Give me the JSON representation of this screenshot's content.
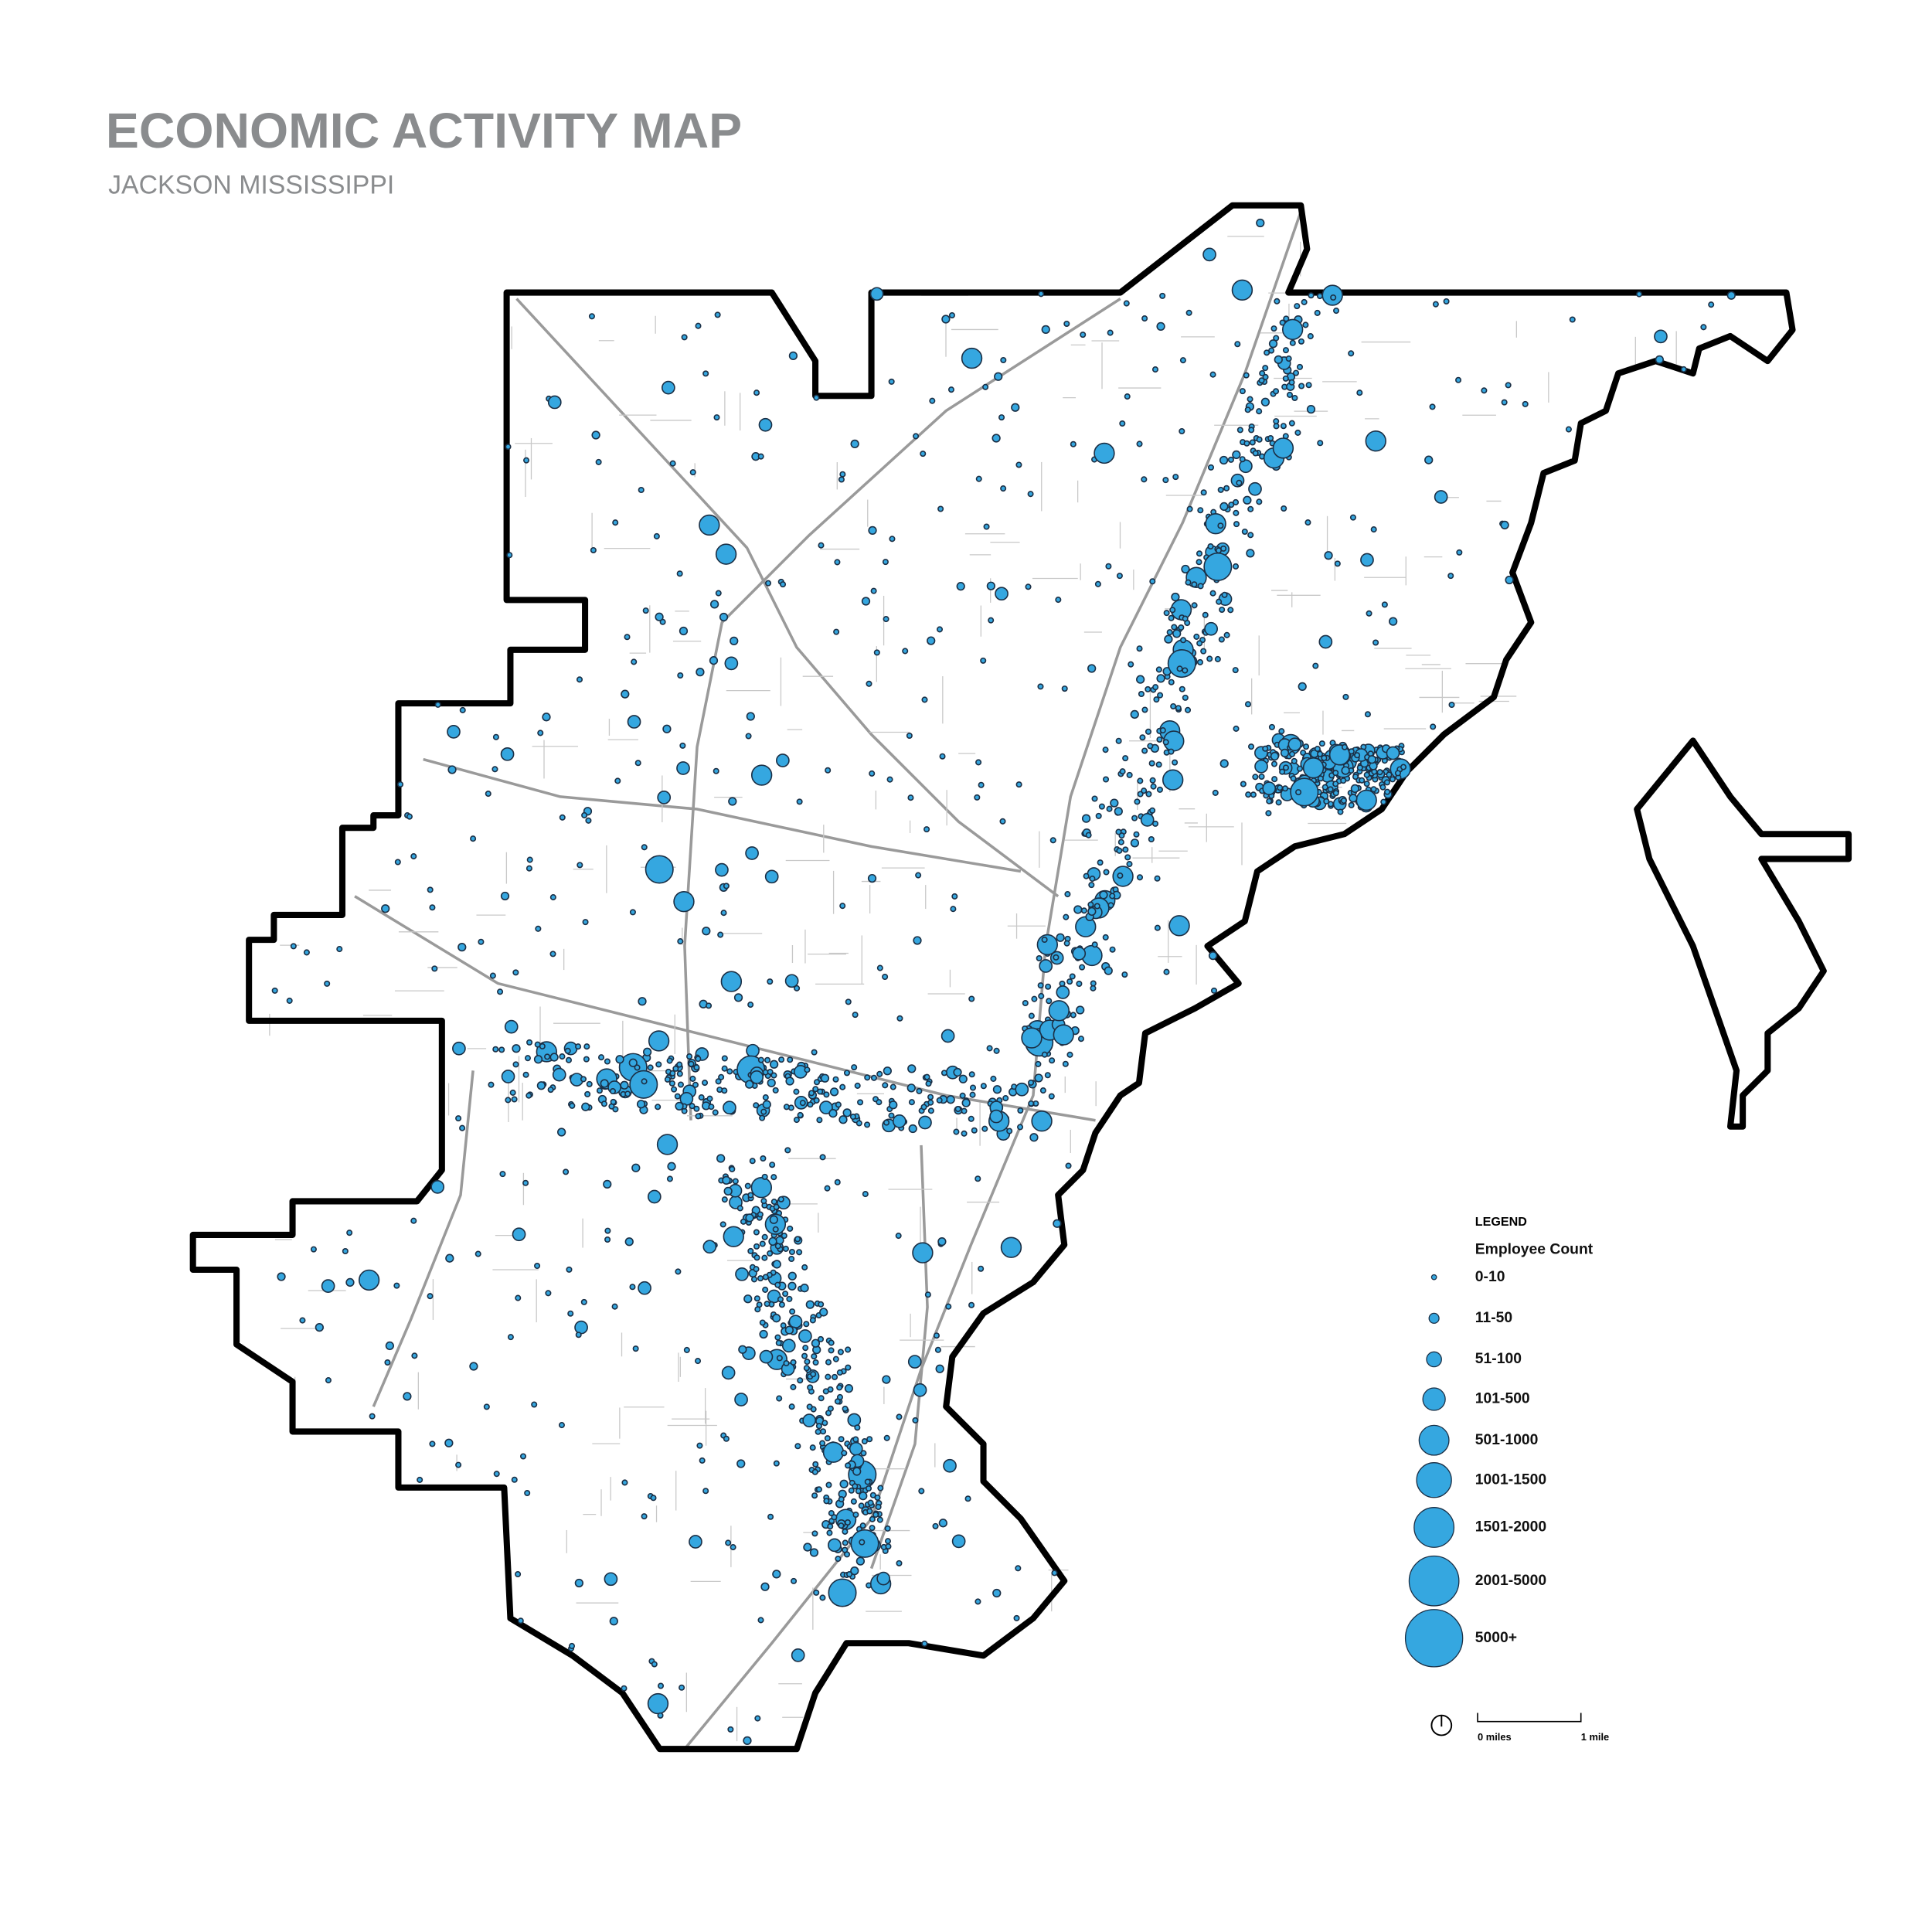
{
  "title": "ECONOMIC ACTIVITY MAP",
  "subtitle": "JACKSON MISSISSIPPI",
  "legend": {
    "heading": "LEGEND",
    "title": "Employee Count",
    "classes": [
      "0-10",
      "11-50",
      "51-100",
      "101-500",
      "501-1000",
      "1001-1500",
      "1501-2000",
      "2001-5000",
      "5000+"
    ]
  },
  "scale_bar": {
    "start": "0 miles",
    "end": "1 mile"
  }
}
